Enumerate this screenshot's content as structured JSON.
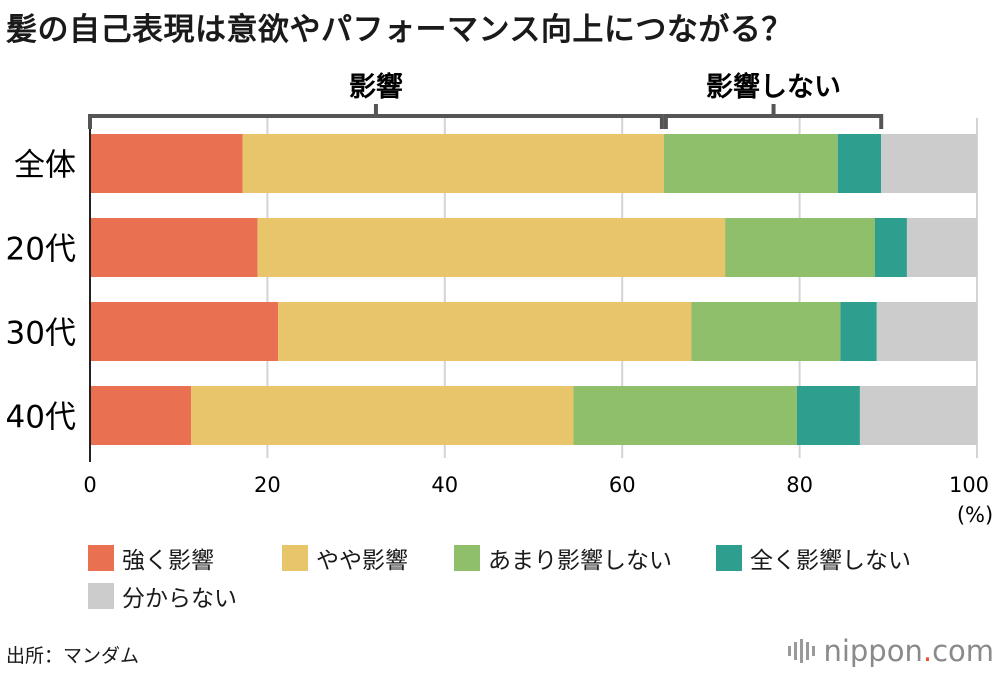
{
  "title": "髪の自己表現は意欲やパフォーマンス向上につながる？",
  "chart_data": {
    "type": "bar",
    "orientation": "horizontal",
    "stacked": true,
    "categories": [
      "全体",
      "20代",
      "30代",
      "40代"
    ],
    "series": [
      {
        "name": "強く影響",
        "color": "#e97152",
        "values": [
          17.2,
          18.9,
          21.2,
          11.4
        ]
      },
      {
        "name": "やや影響",
        "color": "#e8c46a",
        "values": [
          47.5,
          52.7,
          46.6,
          43.1
        ]
      },
      {
        "name": "あまり影響しない",
        "color": "#8fbf6b",
        "values": [
          19.6,
          16.9,
          16.8,
          25.2
        ]
      },
      {
        "name": "全く影響しない",
        "color": "#2e9e8e",
        "values": [
          4.9,
          3.6,
          4.1,
          7.1
        ]
      },
      {
        "name": "分からない",
        "color": "#cccccc",
        "values": [
          10.8,
          7.9,
          11.3,
          13.2
        ]
      }
    ],
    "xlim": [
      0,
      100
    ],
    "xticks": [
      0,
      20,
      40,
      60,
      80,
      100
    ],
    "xunit": "(%)",
    "grid": true,
    "brackets": [
      {
        "label": "影響",
        "from": 0,
        "to": 64.7
      },
      {
        "label": "影響しない",
        "from": 64.7,
        "to": 89.2
      }
    ]
  },
  "source": "出所：マンダム",
  "logo": {
    "name": "nippon",
    "dot": ".",
    "tld": "com"
  }
}
